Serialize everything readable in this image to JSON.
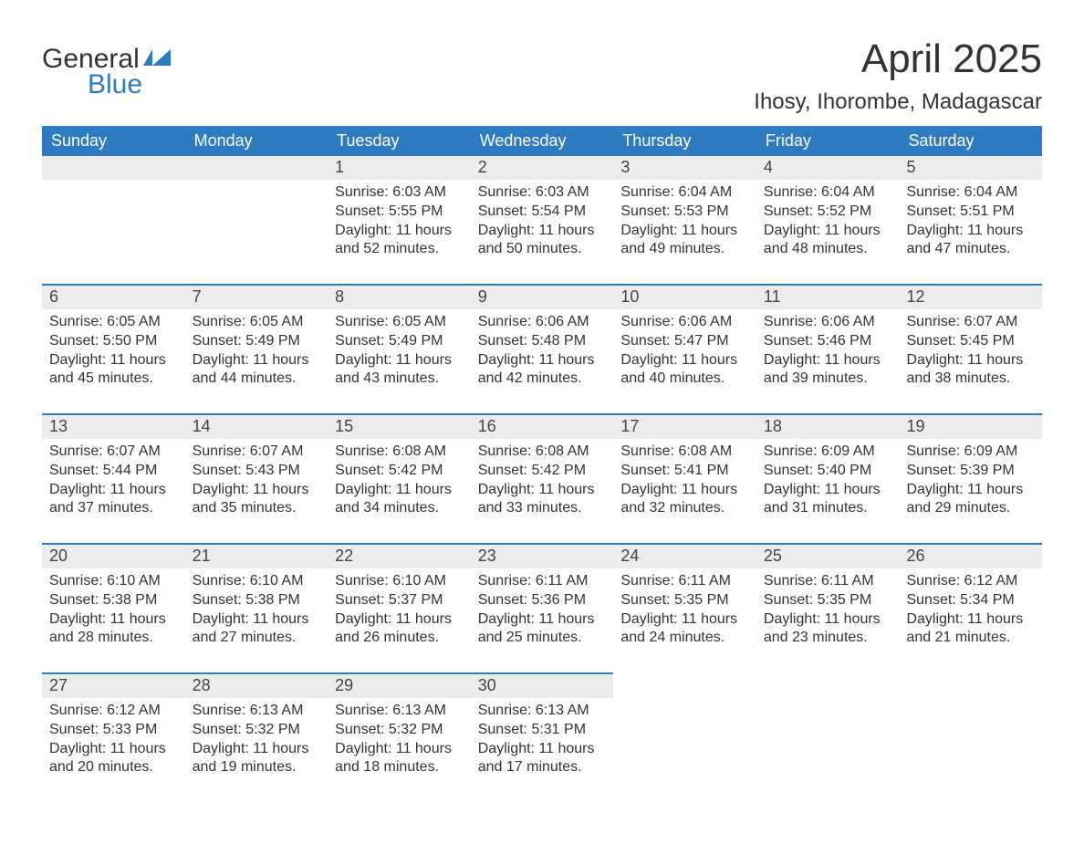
{
  "logo": {
    "text_general": "General",
    "text_blue": "Blue",
    "accent_color": "#2f7bbf",
    "text_color": "#333333"
  },
  "title": "April 2025",
  "location": "Ihosy, Ihorombe, Madagascar",
  "colors": {
    "header_bg": "#2f7bbf",
    "header_text": "#ffffff",
    "daynum_bg": "#ececec",
    "text": "#333333",
    "separator": "#2f7bbf",
    "background": "#ffffff"
  },
  "fonts": {
    "title_size_pt": 33,
    "location_size_pt": 18,
    "dow_size_pt": 14,
    "daynum_size_pt": 14,
    "body_size_pt": 12
  },
  "days_of_week": [
    "Sunday",
    "Monday",
    "Tuesday",
    "Wednesday",
    "Thursday",
    "Friday",
    "Saturday"
  ],
  "weeks": [
    [
      {
        "n": "",
        "empty": true
      },
      {
        "n": "",
        "empty": true
      },
      {
        "n": "1",
        "sunrise": "Sunrise: 6:03 AM",
        "sunset": "Sunset: 5:55 PM",
        "dl1": "Daylight: 11 hours",
        "dl2": "and 52 minutes."
      },
      {
        "n": "2",
        "sunrise": "Sunrise: 6:03 AM",
        "sunset": "Sunset: 5:54 PM",
        "dl1": "Daylight: 11 hours",
        "dl2": "and 50 minutes."
      },
      {
        "n": "3",
        "sunrise": "Sunrise: 6:04 AM",
        "sunset": "Sunset: 5:53 PM",
        "dl1": "Daylight: 11 hours",
        "dl2": "and 49 minutes."
      },
      {
        "n": "4",
        "sunrise": "Sunrise: 6:04 AM",
        "sunset": "Sunset: 5:52 PM",
        "dl1": "Daylight: 11 hours",
        "dl2": "and 48 minutes."
      },
      {
        "n": "5",
        "sunrise": "Sunrise: 6:04 AM",
        "sunset": "Sunset: 5:51 PM",
        "dl1": "Daylight: 11 hours",
        "dl2": "and 47 minutes."
      }
    ],
    [
      {
        "n": "6",
        "sunrise": "Sunrise: 6:05 AM",
        "sunset": "Sunset: 5:50 PM",
        "dl1": "Daylight: 11 hours",
        "dl2": "and 45 minutes."
      },
      {
        "n": "7",
        "sunrise": "Sunrise: 6:05 AM",
        "sunset": "Sunset: 5:49 PM",
        "dl1": "Daylight: 11 hours",
        "dl2": "and 44 minutes."
      },
      {
        "n": "8",
        "sunrise": "Sunrise: 6:05 AM",
        "sunset": "Sunset: 5:49 PM",
        "dl1": "Daylight: 11 hours",
        "dl2": "and 43 minutes."
      },
      {
        "n": "9",
        "sunrise": "Sunrise: 6:06 AM",
        "sunset": "Sunset: 5:48 PM",
        "dl1": "Daylight: 11 hours",
        "dl2": "and 42 minutes."
      },
      {
        "n": "10",
        "sunrise": "Sunrise: 6:06 AM",
        "sunset": "Sunset: 5:47 PM",
        "dl1": "Daylight: 11 hours",
        "dl2": "and 40 minutes."
      },
      {
        "n": "11",
        "sunrise": "Sunrise: 6:06 AM",
        "sunset": "Sunset: 5:46 PM",
        "dl1": "Daylight: 11 hours",
        "dl2": "and 39 minutes."
      },
      {
        "n": "12",
        "sunrise": "Sunrise: 6:07 AM",
        "sunset": "Sunset: 5:45 PM",
        "dl1": "Daylight: 11 hours",
        "dl2": "and 38 minutes."
      }
    ],
    [
      {
        "n": "13",
        "sunrise": "Sunrise: 6:07 AM",
        "sunset": "Sunset: 5:44 PM",
        "dl1": "Daylight: 11 hours",
        "dl2": "and 37 minutes."
      },
      {
        "n": "14",
        "sunrise": "Sunrise: 6:07 AM",
        "sunset": "Sunset: 5:43 PM",
        "dl1": "Daylight: 11 hours",
        "dl2": "and 35 minutes."
      },
      {
        "n": "15",
        "sunrise": "Sunrise: 6:08 AM",
        "sunset": "Sunset: 5:42 PM",
        "dl1": "Daylight: 11 hours",
        "dl2": "and 34 minutes."
      },
      {
        "n": "16",
        "sunrise": "Sunrise: 6:08 AM",
        "sunset": "Sunset: 5:42 PM",
        "dl1": "Daylight: 11 hours",
        "dl2": "and 33 minutes."
      },
      {
        "n": "17",
        "sunrise": "Sunrise: 6:08 AM",
        "sunset": "Sunset: 5:41 PM",
        "dl1": "Daylight: 11 hours",
        "dl2": "and 32 minutes."
      },
      {
        "n": "18",
        "sunrise": "Sunrise: 6:09 AM",
        "sunset": "Sunset: 5:40 PM",
        "dl1": "Daylight: 11 hours",
        "dl2": "and 31 minutes."
      },
      {
        "n": "19",
        "sunrise": "Sunrise: 6:09 AM",
        "sunset": "Sunset: 5:39 PM",
        "dl1": "Daylight: 11 hours",
        "dl2": "and 29 minutes."
      }
    ],
    [
      {
        "n": "20",
        "sunrise": "Sunrise: 6:10 AM",
        "sunset": "Sunset: 5:38 PM",
        "dl1": "Daylight: 11 hours",
        "dl2": "and 28 minutes."
      },
      {
        "n": "21",
        "sunrise": "Sunrise: 6:10 AM",
        "sunset": "Sunset: 5:38 PM",
        "dl1": "Daylight: 11 hours",
        "dl2": "and 27 minutes."
      },
      {
        "n": "22",
        "sunrise": "Sunrise: 6:10 AM",
        "sunset": "Sunset: 5:37 PM",
        "dl1": "Daylight: 11 hours",
        "dl2": "and 26 minutes."
      },
      {
        "n": "23",
        "sunrise": "Sunrise: 6:11 AM",
        "sunset": "Sunset: 5:36 PM",
        "dl1": "Daylight: 11 hours",
        "dl2": "and 25 minutes."
      },
      {
        "n": "24",
        "sunrise": "Sunrise: 6:11 AM",
        "sunset": "Sunset: 5:35 PM",
        "dl1": "Daylight: 11 hours",
        "dl2": "and 24 minutes."
      },
      {
        "n": "25",
        "sunrise": "Sunrise: 6:11 AM",
        "sunset": "Sunset: 5:35 PM",
        "dl1": "Daylight: 11 hours",
        "dl2": "and 23 minutes."
      },
      {
        "n": "26",
        "sunrise": "Sunrise: 6:12 AM",
        "sunset": "Sunset: 5:34 PM",
        "dl1": "Daylight: 11 hours",
        "dl2": "and 21 minutes."
      }
    ],
    [
      {
        "n": "27",
        "sunrise": "Sunrise: 6:12 AM",
        "sunset": "Sunset: 5:33 PM",
        "dl1": "Daylight: 11 hours",
        "dl2": "and 20 minutes."
      },
      {
        "n": "28",
        "sunrise": "Sunrise: 6:13 AM",
        "sunset": "Sunset: 5:32 PM",
        "dl1": "Daylight: 11 hours",
        "dl2": "and 19 minutes."
      },
      {
        "n": "29",
        "sunrise": "Sunrise: 6:13 AM",
        "sunset": "Sunset: 5:32 PM",
        "dl1": "Daylight: 11 hours",
        "dl2": "and 18 minutes."
      },
      {
        "n": "30",
        "sunrise": "Sunrise: 6:13 AM",
        "sunset": "Sunset: 5:31 PM",
        "dl1": "Daylight: 11 hours",
        "dl2": "and 17 minutes."
      },
      {
        "n": "",
        "empty": true,
        "noshade": true
      },
      {
        "n": "",
        "empty": true,
        "noshade": true
      },
      {
        "n": "",
        "empty": true,
        "noshade": true
      }
    ]
  ]
}
